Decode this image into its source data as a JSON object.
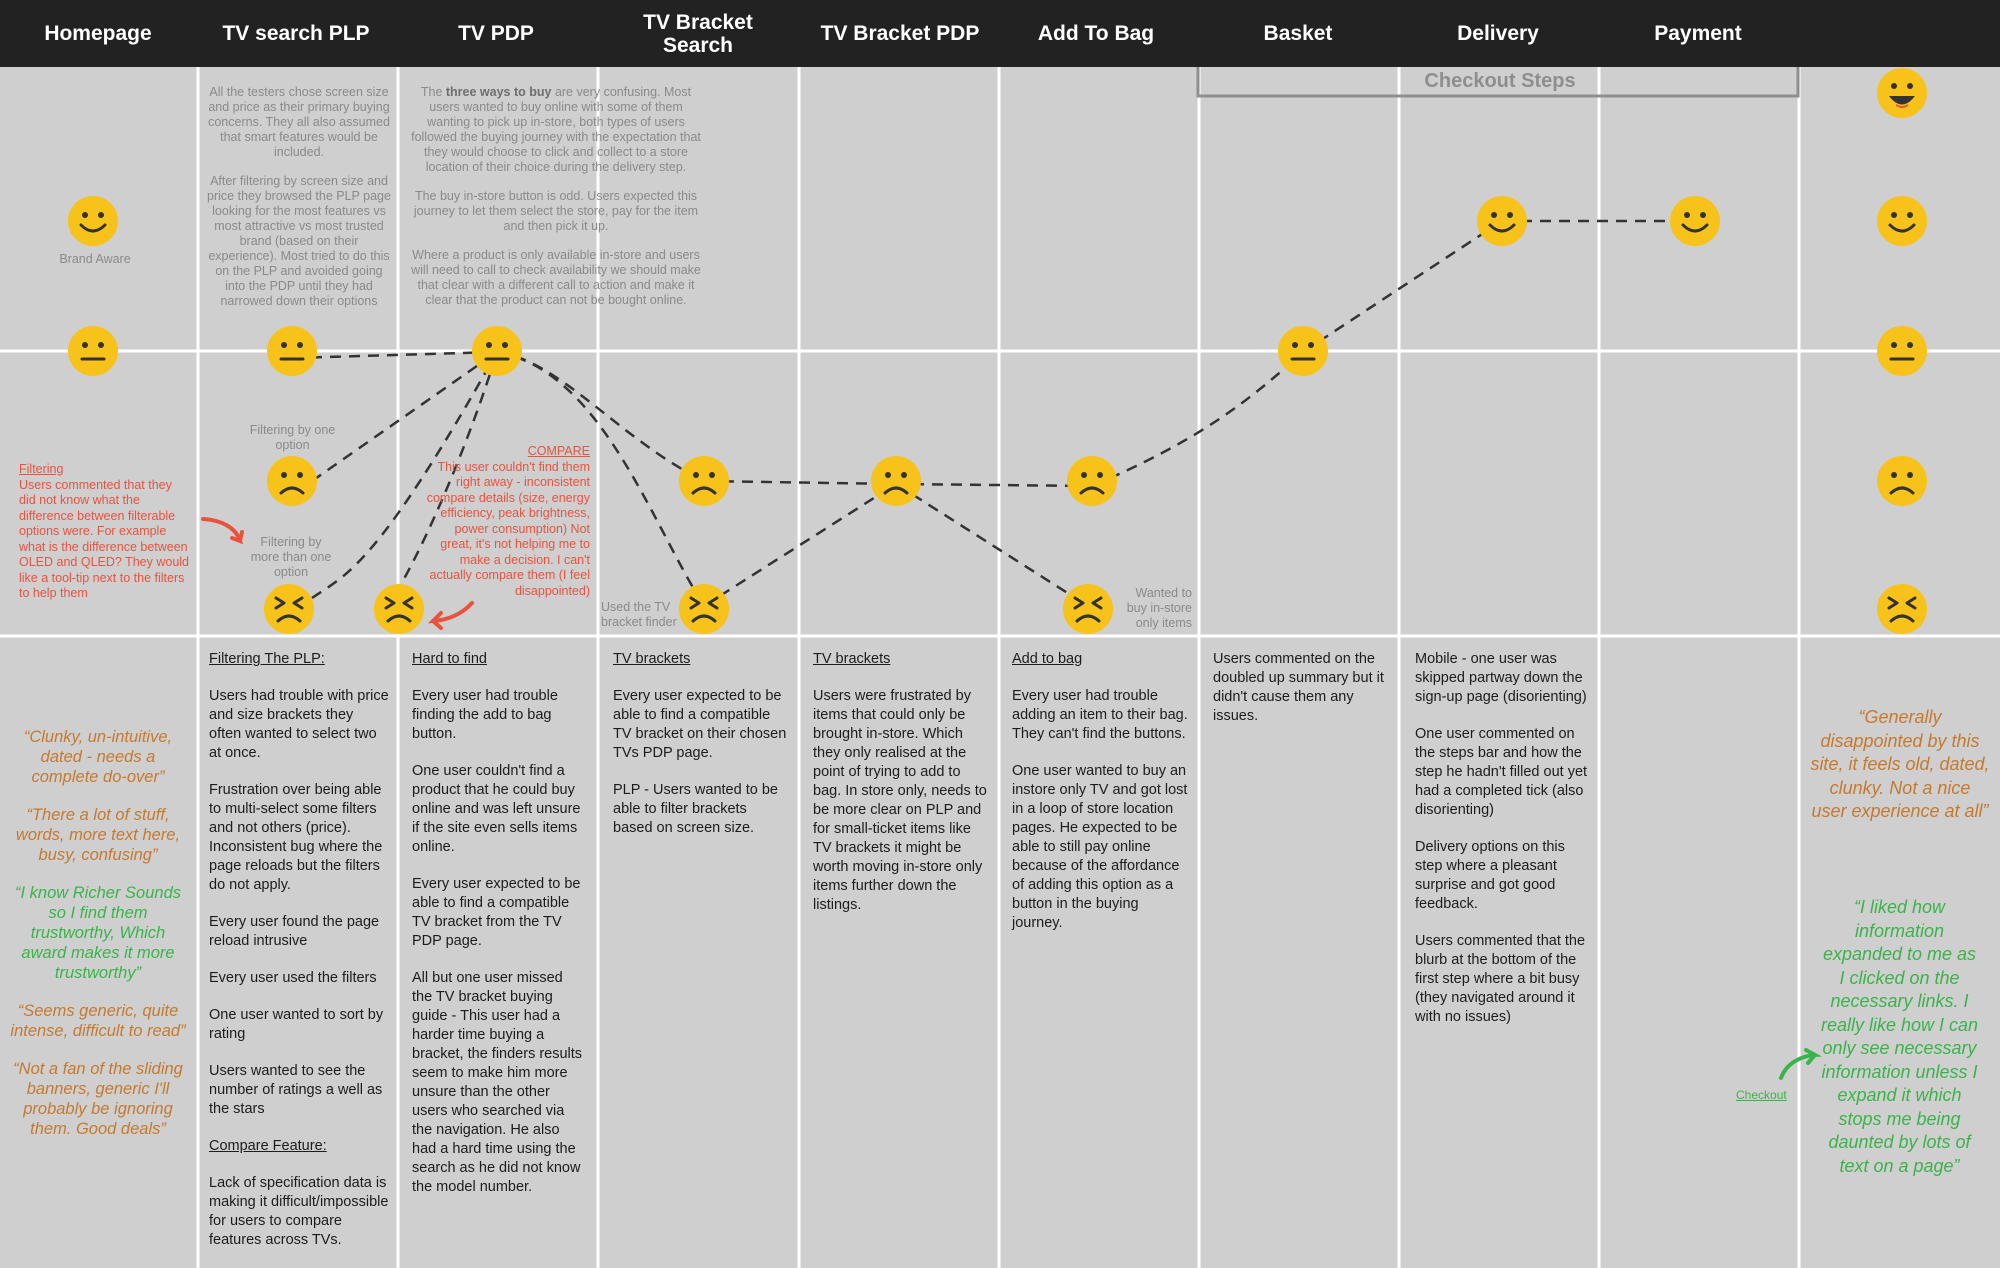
{
  "colors": {
    "header_bg": "#222222",
    "panel_bg": "#cfcfcf",
    "grid_line": "#ffffff",
    "face_yellow": "#f7c21a",
    "note_red": "#e8533f",
    "quote_orange": "#c57a2f",
    "quote_green": "#3ab44a",
    "curve": "#333333"
  },
  "stages": [
    "Homepage",
    "TV search PLP",
    "TV PDP",
    "TV Bracket Search",
    "TV Bracket PDP",
    "Add To Bag",
    "Basket",
    "Delivery",
    "Payment"
  ],
  "checkout_label": "Checkout Steps",
  "emotion_scale": [
    "very happy",
    "happy",
    "neutral",
    "sad",
    "very sad"
  ],
  "journey_points": [
    {
      "stage": "Homepage",
      "level": "happy",
      "label": "Brand Aware"
    },
    {
      "stage": "Homepage",
      "level": "neutral",
      "label": ""
    },
    {
      "stage": "TV search PLP",
      "level": "neutral",
      "label": ""
    },
    {
      "stage": "TV search PLP",
      "level": "sad",
      "label": "Filtering by one option"
    },
    {
      "stage": "TV search PLP",
      "level": "very sad",
      "label": "Filtering by more than one option"
    },
    {
      "stage": "TV PDP",
      "level": "neutral",
      "label": ""
    },
    {
      "stage": "TV PDP",
      "level": "very sad",
      "label": ""
    },
    {
      "stage": "TV Bracket Search",
      "level": "sad",
      "label": ""
    },
    {
      "stage": "TV Bracket Search",
      "level": "very sad",
      "label": "Used the TV bracket finder"
    },
    {
      "stage": "TV Bracket PDP",
      "level": "sad",
      "label": ""
    },
    {
      "stage": "Add To Bag",
      "level": "sad",
      "label": ""
    },
    {
      "stage": "Add To Bag",
      "level": "very sad",
      "label": "Wanted to buy in-store only items"
    },
    {
      "stage": "Basket",
      "level": "neutral",
      "label": ""
    },
    {
      "stage": "Delivery",
      "level": "happy",
      "label": ""
    },
    {
      "stage": "Payment",
      "level": "happy",
      "label": ""
    }
  ],
  "top_notes": {
    "plp": [
      "All the testers chose screen size and price as their primary buying concerns. They all also assumed that smart features would be included.",
      "After filtering by screen size and price they browsed the PLP page looking for the most features vs most attractive vs most trusted brand (based on their experience). Most tried to do this on the PLP and avoided going into the PDP until they had narrowed down their options"
    ],
    "pdp_bold": "three ways to buy",
    "pdp_pre": "The ",
    "pdp_post": " are very confusing. Most users wanted to buy online with some of them wanting to pick up in-store, both types of users followed the buying journey with the expectation that they would choose to click and collect to a store location of their choice during the delivery step.",
    "pdp_2": "The buy in-store button is odd. Users expected this journey to let them select the store, pay for the item and then pick it up.",
    "pdp_3": "Where a product is only available in-store and users will need to call to check availability we should make that clear with a different call to action and make it clear that the product can not be bought online."
  },
  "point_labels": {
    "brand_aware": "Brand Aware",
    "filter_one": "Filtering by one option",
    "filter_more": "Filtering by more than one option",
    "bracket_finder": "Used the TV bracket finder",
    "instore_only": "Wanted to buy in-store only items",
    "checkout": "Checkout"
  },
  "red_notes": {
    "filtering_title": "Filtering",
    "filtering_body": "Users commented that they did not know what the difference between filterable options were. For example what is the difference between OLED and QLED? They would like a tool-tip next to the filters to help them",
    "compare_title": "COMPARE",
    "compare_body": "This user couldn't find them right away - inconsistent compare details (size, energy efficiency, peak brightness, power consumption) Not great, it's not helping me to make a decision. I can't actually compare them (I feel disappointed)"
  },
  "columns": {
    "plp": {
      "heading": "Filtering The PLP:",
      "paras": [
        "Users had trouble with price and size brackets they often wanted to select two at once.",
        "Frustration over being able to multi-select some filters and not others (price). Inconsistent bug where the page reloads but the filters do not apply.",
        "Every user found the page reload intrusive",
        "Every user used the filters",
        "One user wanted to sort by rating",
        "Users wanted to see the number of ratings a well as the stars"
      ],
      "heading2": "Compare Feature:",
      "paras2": [
        "Lack of specification data is making it difficult/impossible for users to compare features across TVs."
      ]
    },
    "pdp": {
      "heading": "Hard to find",
      "paras": [
        "Every user had trouble finding the add to bag button.",
        "One user couldn't find a product that he could buy online and was left unsure if the site even sells items online.",
        "Every user expected to be able to find a compatible TV bracket from the TV PDP page.",
        "All but one user missed the TV bracket buying guide - This user had a harder time buying a bracket, the finders results seem to make him more unsure than the other users who searched via the navigation. He also had a hard time using the search as he did not know the model number."
      ]
    },
    "bracket_search": {
      "heading": "TV brackets",
      "paras": [
        "Every user expected to be able to find a compatible TV bracket on their chosen TVs PDP page.",
        "PLP - Users wanted to be able to filter brackets based on screen size."
      ]
    },
    "bracket_pdp": {
      "heading": "TV brackets",
      "paras": [
        "Users were frustrated by items that could only be brought in-store. Which they only realised at the point of trying to add to bag. In store only, needs to be more clear on PLP and for small-ticket items like TV brackets it might be worth moving in-store only items further down the listings."
      ]
    },
    "add_to_bag": {
      "heading": "Add to bag",
      "paras": [
        "Every user had trouble adding an item to their bag. They can't find the buttons.",
        "One user wanted to buy an instore only TV and got lost in a loop of store location pages. He expected to be able to still pay online because of the affordance of adding this option as a button in the buying journey."
      ]
    },
    "basket": {
      "paras": [
        "Users commented on the doubled up summary but it didn't cause them any issues."
      ]
    },
    "delivery": {
      "paras": [
        "Mobile - one user was skipped partway down the sign-up page (disorienting)",
        "One user commented on the steps bar and how the step he hadn't filled out yet had a completed tick (also disorienting)",
        "Delivery options on this step where a pleasant surprise and got good feedback.",
        "Users commented that the blurb at the bottom of the first step where a bit busy (they navigated around it with no issues)"
      ]
    }
  },
  "home_quotes": [
    {
      "text": "“Clunky, un-intuitive, dated - needs a complete do-over”",
      "tone": "orange"
    },
    {
      "text": "“There a lot of stuff, words, more text here, busy, confusing”",
      "tone": "orange"
    },
    {
      "text": "“I know Richer Sounds so I find them trustworthy, Which award makes it more trustworthy”",
      "tone": "green"
    },
    {
      "text": "“Seems generic, quite intense, difficult to read”",
      "tone": "orange"
    },
    {
      "text": "“Not a fan of the sliding banners, generic I'll probably be ignoring them. Good deals”",
      "tone": "orange"
    }
  ],
  "summary_quotes": [
    {
      "text": "“Generally disappointed by this site, it feels old, dated, clunky. Not a nice user experience at all”",
      "tone": "orange"
    },
    {
      "text": "“I liked how information expanded to me as I clicked on the necessary links. I really like how I can only see necessary information unless I expand it which stops me being daunted by lots of text on a page”",
      "tone": "green"
    }
  ]
}
